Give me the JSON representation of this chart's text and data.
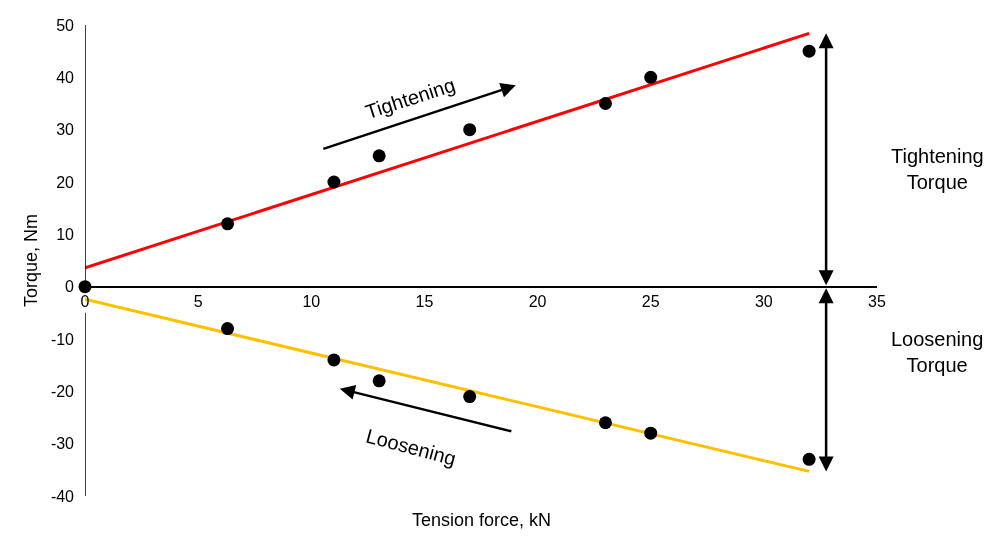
{
  "chart_data": {
    "type": "scatter",
    "xlabel": "Tension force, kN",
    "ylabel": "Torque, Nm",
    "series": [
      {
        "color": "#000000",
        "x": [
          0,
          6.3,
          11,
          13,
          17,
          23,
          25,
          32
        ],
        "values": [
          0,
          12,
          20,
          25,
          30,
          35,
          40,
          45
        ]
      },
      {
        "color": "#000000",
        "x": [
          6.3,
          11,
          13,
          17,
          23,
          25,
          32
        ],
        "values": [
          -8,
          -14,
          -18,
          -21,
          -26,
          -28,
          -33
        ]
      },
      {
        "type": "line",
        "marker": "none",
        "color": "#ff0000",
        "x": [
          0,
          32
        ],
        "values": [
          3.6,
          48.4
        ]
      },
      {
        "type": "line",
        "marker": "none",
        "color": "#ffc000",
        "x": [
          0,
          32
        ],
        "values": [
          -2.4,
          -35.3
        ]
      }
    ],
    "xlim": [
      0,
      35
    ],
    "ylim": [
      -40,
      50
    ],
    "xticks": [
      0,
      5,
      10,
      15,
      20,
      25,
      30,
      35
    ],
    "yticks": [
      -40,
      -30,
      -20,
      -10,
      0,
      10,
      20,
      30,
      40,
      50
    ],
    "marker": "circle",
    "annotations": [
      "Tightening",
      "Loosening",
      "Tightening\nTorque",
      "Loosening\nTorque"
    ]
  }
}
